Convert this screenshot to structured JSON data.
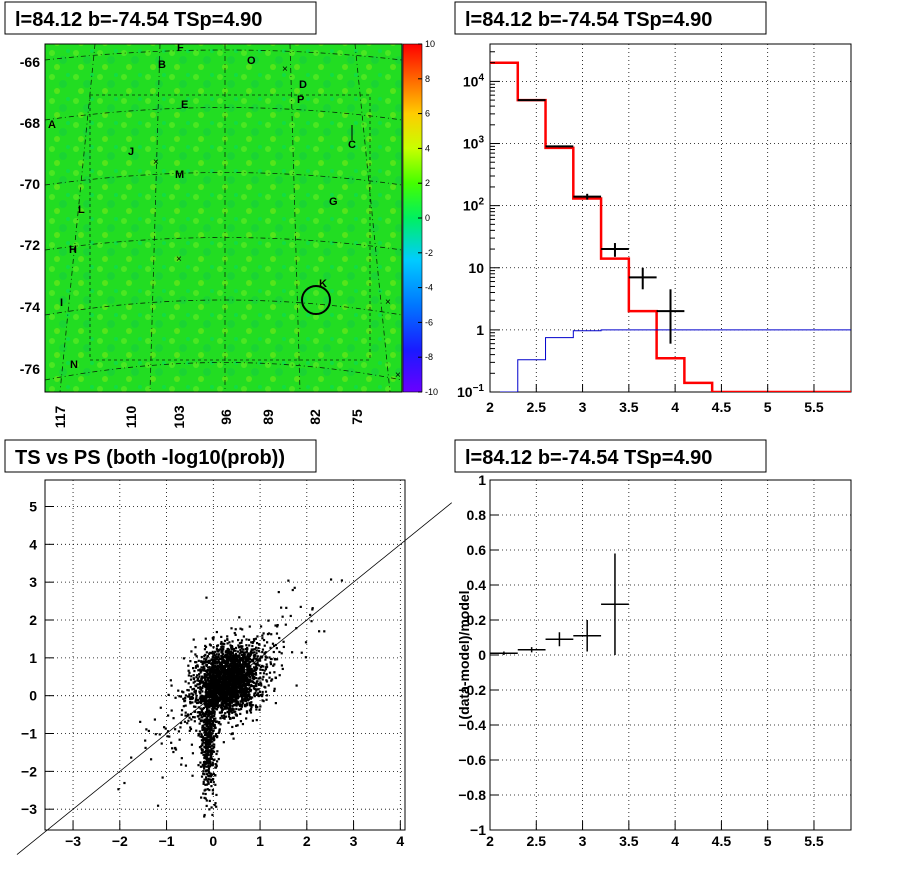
{
  "panels": {
    "map": {
      "title": "l=84.12 b=-74.54 TSp=4.90"
    },
    "spectrum": {
      "title": "l=84.12 b=-74.54 TSp=4.90"
    },
    "scatter": {
      "title": "TS vs PS (both -log10(prob))"
    },
    "residual": {
      "title": "l=84.12 b=-74.54 TSp=4.90",
      "ylabel": "(data-model)/model"
    }
  },
  "colors": {
    "data": "#000000",
    "model": "#ff0000",
    "background_model": "#0000cc",
    "map_base": "#22dd22"
  },
  "chart_data": [
    {
      "type": "heatmap",
      "title": "l=84.12 b=-74.54 TSp=4.90",
      "y_ticks": [
        "-66",
        "-68",
        "-70",
        "-72",
        "-74",
        "-76"
      ],
      "x_ticks": [
        "117",
        "110",
        "103",
        "96",
        "89",
        "82",
        "75"
      ],
      "colorbar_ticks": [
        "10",
        "8",
        "6",
        "4",
        "2",
        "0",
        "-2",
        "-4",
        "-6",
        "-8",
        "-10"
      ],
      "zlim": [
        -10,
        10
      ],
      "markers": [
        "A",
        "B",
        "C",
        "D",
        "E",
        "F",
        "G",
        "H",
        "I",
        "J",
        "K",
        "L",
        "M",
        "N",
        "O",
        "P"
      ],
      "circle_marker": true
    },
    {
      "type": "line",
      "title": "l=84.12 b=-74.54 TSp=4.90",
      "log_y": true,
      "xlim": [
        2,
        5.9
      ],
      "ylim": [
        0.1,
        40000
      ],
      "x_ticks": [
        "2",
        "2.5",
        "3",
        "3.5",
        "4",
        "4.5",
        "5",
        "5.5"
      ],
      "y_ticks": [
        "10^4",
        "10^3",
        "10^2",
        "10",
        "1",
        "10^-1"
      ],
      "series": [
        {
          "kind": "model_step",
          "color": "#ff0000",
          "edges": [
            2.0,
            2.3,
            2.6,
            2.9,
            3.2,
            3.5,
            3.8,
            4.1,
            4.4,
            5.9
          ],
          "values": [
            20000,
            5000,
            850,
            130,
            14,
            2.0,
            0.35,
            0.14,
            0.1
          ]
        },
        {
          "kind": "background_step",
          "color": "#0000cc",
          "edges": [
            2.0,
            2.3,
            2.6,
            2.9,
            3.2,
            5.9
          ],
          "values": [
            0.1,
            0.33,
            0.75,
            0.97,
            1.0
          ]
        },
        {
          "kind": "data_points",
          "color": "#000000",
          "points": [
            {
              "x": 2.45,
              "y": 5000,
              "xerr": 0.15,
              "ylo": 4900,
              "yhi": 5100
            },
            {
              "x": 2.75,
              "y": 900,
              "xerr": 0.15,
              "ylo": 870,
              "yhi": 930
            },
            {
              "x": 3.05,
              "y": 140,
              "xerr": 0.15,
              "ylo": 125,
              "yhi": 155
            },
            {
              "x": 3.35,
              "y": 20,
              "xerr": 0.15,
              "ylo": 15,
              "yhi": 25
            },
            {
              "x": 3.65,
              "y": 7,
              "xerr": 0.15,
              "ylo": 4.5,
              "yhi": 10
            },
            {
              "x": 3.95,
              "y": 2,
              "xerr": 0.15,
              "ylo": 0.6,
              "yhi": 4.5
            }
          ]
        }
      ]
    },
    {
      "type": "scatter",
      "title": "TS vs PS (both -log10(prob))",
      "xlim": [
        -3.6,
        4.1
      ],
      "ylim": [
        -3.55,
        5.7
      ],
      "x_ticks": [
        "-3",
        "-2",
        "-1",
        "0",
        "1",
        "2",
        "3",
        "4"
      ],
      "y_ticks": [
        "5",
        "4",
        "3",
        "2",
        "1",
        "0",
        "-1",
        "-2",
        "-3"
      ],
      "diagonal_line": {
        "slope": 1,
        "intercept": 0
      },
      "point_count_estimate": 3000
    },
    {
      "type": "line",
      "title": "l=84.12 b=-74.54 TSp=4.90",
      "ylabel": "(data-model)/model",
      "xlim": [
        2,
        5.9
      ],
      "ylim": [
        -1,
        1
      ],
      "x_ticks": [
        "2",
        "2.5",
        "3",
        "3.5",
        "4",
        "4.5",
        "5",
        "5.5"
      ],
      "y_ticks": [
        "1",
        "0.8",
        "0.6",
        "0.4",
        "0.2",
        "0",
        "-0.2",
        "-0.4",
        "-0.6",
        "-0.8",
        "-1"
      ],
      "points": [
        {
          "x": 2.15,
          "y": 0.01,
          "xerr": 0.15,
          "yerr": 0.01
        },
        {
          "x": 2.45,
          "y": 0.03,
          "xerr": 0.15,
          "yerr": 0.015
        },
        {
          "x": 2.75,
          "y": 0.09,
          "xerr": 0.15,
          "yerr": 0.04
        },
        {
          "x": 3.05,
          "y": 0.11,
          "xerr": 0.15,
          "yerr": 0.09
        },
        {
          "x": 3.35,
          "y": 0.29,
          "xerr": 0.15,
          "yerr": 0.29
        }
      ]
    }
  ]
}
